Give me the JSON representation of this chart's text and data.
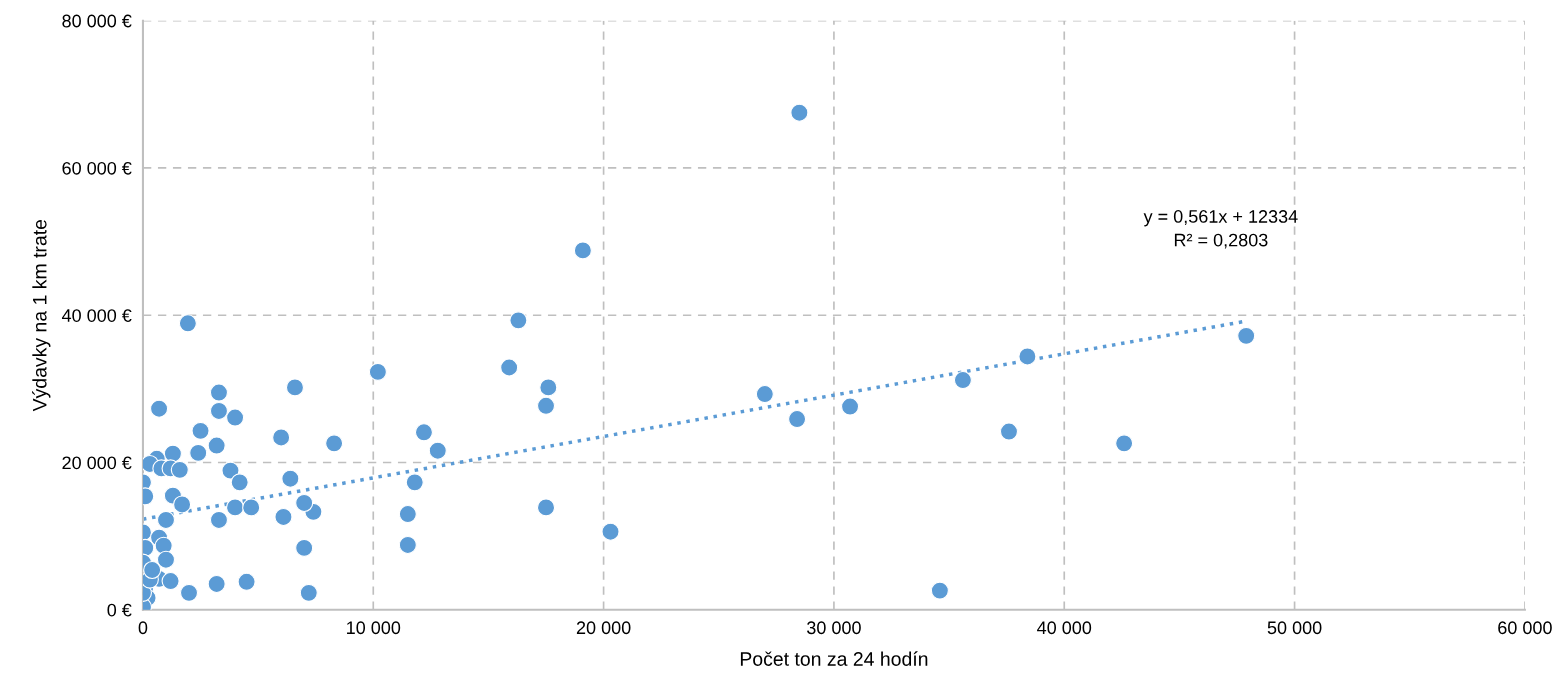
{
  "chart_data": {
    "type": "scatter",
    "xlabel": "Počet ton za 24 hodín",
    "ylabel": "Výdavky na 1 km trate",
    "xlim": [
      0,
      60000
    ],
    "ylim": [
      0,
      80000
    ],
    "xticks": [
      {
        "value": 0,
        "label": "0"
      },
      {
        "value": 10000,
        "label": "10 000"
      },
      {
        "value": 20000,
        "label": "20 000"
      },
      {
        "value": 30000,
        "label": "30 000"
      },
      {
        "value": 40000,
        "label": "40 000"
      },
      {
        "value": 50000,
        "label": "50 000"
      },
      {
        "value": 60000,
        "label": "60 000"
      }
    ],
    "yticks": [
      {
        "value": 0,
        "label": "0 €"
      },
      {
        "value": 20000,
        "label": "20 000 €"
      },
      {
        "value": 40000,
        "label": "40 000 €"
      },
      {
        "value": 60000,
        "label": "60 000 €"
      },
      {
        "value": 80000,
        "label": "80 000 €"
      }
    ],
    "grid": true,
    "marker": "circle",
    "annotations": [
      "y = 0,561x + 12334",
      "R² = 0,2803"
    ],
    "series": [
      {
        "color": "#5b9bd5",
        "x": [
          28500,
          19100,
          16300,
          1950,
          15900,
          10200,
          6600,
          17600,
          3300,
          3300,
          700,
          4000,
          17500,
          27000,
          30700,
          28400,
          35600,
          38400,
          47900,
          37600,
          42600,
          34600,
          20300,
          17500,
          12200,
          12800,
          8300,
          6000,
          2500,
          3200,
          2400,
          1300,
          600,
          300,
          800,
          1200,
          1600,
          3800,
          4200,
          0,
          100,
          1300,
          1700,
          1000,
          3300,
          4000,
          4700,
          6400,
          11800,
          11500,
          11500,
          7000,
          7400,
          7000,
          6100,
          7200,
          4500,
          3200,
          2000,
          0,
          700,
          900,
          100,
          1000,
          0,
          700,
          1200,
          100,
          200,
          0,
          0,
          300,
          400
        ],
        "values": [
          67500,
          48800,
          39300,
          38900,
          32900,
          32300,
          30200,
          30200,
          29500,
          27000,
          27300,
          26100,
          27700,
          29300,
          27600,
          25900,
          31200,
          34400,
          37200,
          24200,
          22600,
          2600,
          10600,
          13900,
          24100,
          21600,
          22600,
          23400,
          24300,
          22300,
          21300,
          21200,
          20500,
          19800,
          19200,
          19200,
          19000,
          18900,
          17300,
          17300,
          15400,
          15500,
          14300,
          12200,
          12200,
          13900,
          13900,
          17800,
          17300,
          13000,
          8800,
          8400,
          13300,
          14500,
          12600,
          2300,
          3800,
          3500,
          2300,
          10500,
          9800,
          8700,
          8400,
          6800,
          6400,
          4200,
          3900,
          3000,
          1600,
          400,
          2300,
          4100,
          5400
        ]
      },
      {
        "type": "line",
        "color": "#5b9bd5",
        "line_style": "dotted",
        "marker": "none",
        "x": [
          0,
          47900
        ],
        "values": [
          12300,
          39200
        ]
      }
    ]
  }
}
